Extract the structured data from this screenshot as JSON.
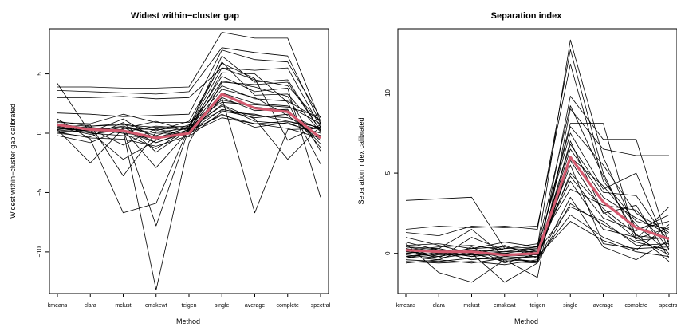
{
  "chart_data": [
    {
      "type": "line",
      "title": "Widest within−cluster gap",
      "xlabel": "Method",
      "ylabel": "Widest within−cluster gap calibrated",
      "categories": [
        "kmeans",
        "clara",
        "mclust",
        "emskewt",
        "teigen",
        "single",
        "average",
        "complete",
        "spectral"
      ],
      "ylim": [
        -13.5,
        8.8
      ],
      "yticks": [
        -10,
        -5,
        0,
        5
      ],
      "ytick_labels": [
        "−10",
        "−5",
        "0",
        "5"
      ],
      "grid": false,
      "highlight_color": "#d45a6f",
      "line_color": "#000000",
      "series": [
        {
          "highlight": true,
          "values": [
            0.7,
            0.3,
            0.2,
            -0.4,
            0.0,
            3.3,
            2.1,
            1.8,
            -0.4
          ]
        },
        {
          "values": [
            4.2,
            0.0,
            0.5,
            -0.8,
            0.2,
            1.5,
            0.8,
            1.0,
            0.3
          ]
        },
        {
          "values": [
            3.9,
            3.9,
            3.8,
            3.8,
            3.9,
            8.5,
            8.0,
            8.0,
            1.0
          ]
        },
        {
          "values": [
            3.6,
            3.5,
            3.4,
            3.3,
            3.5,
            7.2,
            6.8,
            6.5,
            0.8
          ]
        },
        {
          "values": [
            3.0,
            3.0,
            3.1,
            2.9,
            3.0,
            5.5,
            5.3,
            5.5,
            0.5
          ]
        },
        {
          "values": [
            1.7,
            1.6,
            1.4,
            1.5,
            1.6,
            7.0,
            6.2,
            6.0,
            1.3
          ]
        },
        {
          "values": [
            1.2,
            -0.5,
            -6.7,
            -5.9,
            0.5,
            5.5,
            4.5,
            4.0,
            0.9
          ]
        },
        {
          "values": [
            0.4,
            0.5,
            0.2,
            -13.2,
            -0.8,
            4.3,
            4.1,
            4.3,
            0.2
          ]
        },
        {
          "values": [
            0.6,
            0.4,
            0.3,
            -7.8,
            0.4,
            3.0,
            -6.7,
            0.3,
            0.4
          ]
        },
        {
          "values": [
            0.3,
            -2.5,
            0.4,
            0.3,
            0.5,
            4.8,
            3.5,
            3.8,
            -5.4
          ]
        },
        {
          "values": [
            0.5,
            0.7,
            -3.6,
            0.1,
            0.4,
            3.7,
            3.0,
            1.5,
            -0.6
          ]
        },
        {
          "values": [
            0.9,
            0.8,
            1.6,
            0.9,
            0.9,
            2.6,
            2.4,
            2.2,
            1.4
          ]
        },
        {
          "values": [
            0.2,
            0.1,
            -2.2,
            -0.6,
            0.6,
            6.0,
            3.2,
            3.3,
            0.1
          ]
        },
        {
          "values": [
            0.0,
            -0.3,
            0.9,
            -1.6,
            0.3,
            2.4,
            1.2,
            -2.2,
            0.6
          ]
        },
        {
          "values": [
            -0.2,
            -0.8,
            0.4,
            1.0,
            0.2,
            5.1,
            5.0,
            2.6,
            -2.6
          ]
        },
        {
          "values": [
            0.6,
            0.3,
            0.0,
            -0.3,
            0.1,
            2.0,
            1.5,
            1.3,
            0.4
          ]
        },
        {
          "values": [
            0.8,
            0.2,
            0.6,
            -0.2,
            0.7,
            4.0,
            2.9,
            2.7,
            1.1
          ]
        },
        {
          "values": [
            0.1,
            -0.4,
            -0.5,
            -1.1,
            -0.2,
            3.0,
            1.9,
            2.0,
            -1.2
          ]
        },
        {
          "values": [
            1.0,
            0.6,
            0.8,
            0.2,
            1.0,
            5.9,
            4.6,
            -0.6,
            0.7
          ]
        },
        {
          "values": [
            0.4,
            0.2,
            0.2,
            -0.8,
            0.1,
            1.6,
            0.5,
            0.9,
            -0.2
          ]
        },
        {
          "values": [
            0.3,
            0.5,
            0.1,
            0.6,
            0.4,
            2.3,
            1.0,
            0.8,
            0.0
          ]
        },
        {
          "values": [
            0.7,
            0.1,
            1.2,
            -0.5,
            0.3,
            4.4,
            3.9,
            3.1,
            -1.5
          ]
        },
        {
          "values": [
            0.2,
            0.4,
            -1.0,
            0.4,
            -0.3,
            1.8,
            1.6,
            1.0,
            0.5
          ]
        },
        {
          "values": [
            0.5,
            -0.1,
            0.3,
            -2.9,
            0.2,
            3.4,
            2.5,
            2.3,
            0.8
          ]
        },
        {
          "values": [
            0.0,
            0.3,
            0.5,
            0.0,
            0.0,
            1.3,
            0.8,
            0.4,
            -0.4
          ]
        },
        {
          "values": [
            0.6,
            0.0,
            -0.2,
            -0.4,
            0.5,
            6.5,
            4.3,
            4.5,
            0.2
          ]
        },
        {
          "values": [
            0.3,
            0.6,
            0.7,
            0.5,
            0.6,
            1.9,
            1.3,
            1.6,
            0.3
          ]
        },
        {
          "values": [
            0.8,
            0.4,
            0.0,
            -1.3,
            0.4,
            2.8,
            2.2,
            1.9,
            -0.9
          ]
        }
      ]
    },
    {
      "type": "line",
      "title": "Separation index",
      "xlabel": "Method",
      "ylabel": "Separation index calibrated",
      "categories": [
        "kmeans",
        "clara",
        "mclust",
        "emskewt",
        "teigen",
        "single",
        "average",
        "complete",
        "spectral"
      ],
      "ylim": [
        -2.5,
        14.0
      ],
      "yticks": [
        0,
        5,
        10
      ],
      "ytick_labels": [
        "0",
        "5",
        "10"
      ],
      "grid": false,
      "highlight_color": "#d45a6f",
      "line_color": "#000000",
      "series": [
        {
          "highlight": true,
          "values": [
            0.2,
            0.1,
            0.1,
            -0.1,
            0.0,
            6.0,
            3.2,
            1.6,
            0.9
          ]
        },
        {
          "values": [
            3.3,
            3.4,
            3.5,
            0.3,
            0.4,
            13.3,
            6.0,
            1.5,
            2.0
          ]
        },
        {
          "values": [
            1.5,
            1.7,
            1.6,
            1.7,
            1.5,
            12.7,
            5.0,
            0.8,
            1.0
          ]
        },
        {
          "values": [
            1.3,
            1.1,
            1.7,
            1.6,
            1.7,
            11.8,
            4.5,
            2.0,
            1.5
          ]
        },
        {
          "values": [
            1.0,
            0.5,
            0.0,
            -1.8,
            -0.6,
            9.8,
            7.1,
            7.1,
            0.5
          ]
        },
        {
          "values": [
            0.6,
            -1.2,
            -1.8,
            -0.4,
            -1.5,
            9.0,
            6.5,
            6.1,
            6.1
          ]
        },
        {
          "values": [
            0.4,
            0.3,
            1.5,
            -0.2,
            0.2,
            8.1,
            8.1,
            0.9,
            2.9
          ]
        },
        {
          "values": [
            0.2,
            -0.3,
            1.0,
            0.2,
            0.3,
            7.5,
            4.0,
            5.0,
            0.2
          ]
        },
        {
          "values": [
            0.0,
            0.2,
            -0.2,
            0.5,
            -0.3,
            7.0,
            2.5,
            3.0,
            -0.3
          ]
        },
        {
          "values": [
            -0.2,
            -0.4,
            0.4,
            -0.6,
            0.0,
            6.5,
            3.5,
            2.2,
            1.2
          ]
        },
        {
          "values": [
            0.3,
            0.0,
            0.1,
            0.0,
            -0.1,
            5.5,
            0.6,
            0.3,
            0.4
          ]
        },
        {
          "values": [
            0.5,
            0.6,
            0.3,
            0.7,
            0.4,
            4.5,
            1.5,
            1.0,
            -0.1
          ]
        },
        {
          "values": [
            -0.4,
            -0.5,
            -0.3,
            -0.4,
            -0.5,
            3.5,
            0.4,
            -0.4,
            0.8
          ]
        },
        {
          "values": [
            0.1,
            -0.1,
            -0.1,
            0.1,
            0.1,
            2.9,
            2.0,
            0.5,
            0.6
          ]
        },
        {
          "values": [
            -0.3,
            0.1,
            -0.4,
            -0.2,
            -0.3,
            2.4,
            1.0,
            0.2,
            1.8
          ]
        },
        {
          "values": [
            0.7,
            0.2,
            0.0,
            0.3,
            0.6,
            4.0,
            3.0,
            2.7,
            0.3
          ]
        },
        {
          "values": [
            0.0,
            -0.2,
            0.2,
            -0.3,
            -0.2,
            5.0,
            2.8,
            1.2,
            -0.5
          ]
        },
        {
          "values": [
            -0.5,
            -0.6,
            -0.5,
            -0.7,
            -0.4,
            6.0,
            4.2,
            1.8,
            0.0
          ]
        },
        {
          "values": [
            0.2,
            0.4,
            0.5,
            0.2,
            0.2,
            7.9,
            5.5,
            2.5,
            1.3
          ]
        },
        {
          "values": [
            -0.1,
            -0.3,
            0.0,
            -0.5,
            -0.6,
            3.1,
            1.8,
            0.7,
            0.2
          ]
        },
        {
          "values": [
            0.4,
            0.1,
            -0.2,
            0.0,
            0.3,
            4.8,
            2.2,
            1.4,
            2.4
          ]
        },
        {
          "values": [
            -0.2,
            0.0,
            0.3,
            0.4,
            0.0,
            6.8,
            3.8,
            3.6,
            0.7
          ]
        },
        {
          "values": [
            0.1,
            0.3,
            -0.1,
            -0.1,
            -0.2,
            2.0,
            0.8,
            0.1,
            -0.2
          ]
        },
        {
          "values": [
            -0.6,
            -0.4,
            -0.6,
            -0.3,
            -0.5,
            5.8,
            2.6,
            0.9,
            1.6
          ]
        },
        {
          "values": [
            0.3,
            -0.2,
            0.2,
            0.1,
            0.4,
            9.2,
            4.8,
            1.1,
            0.9
          ]
        }
      ]
    }
  ]
}
